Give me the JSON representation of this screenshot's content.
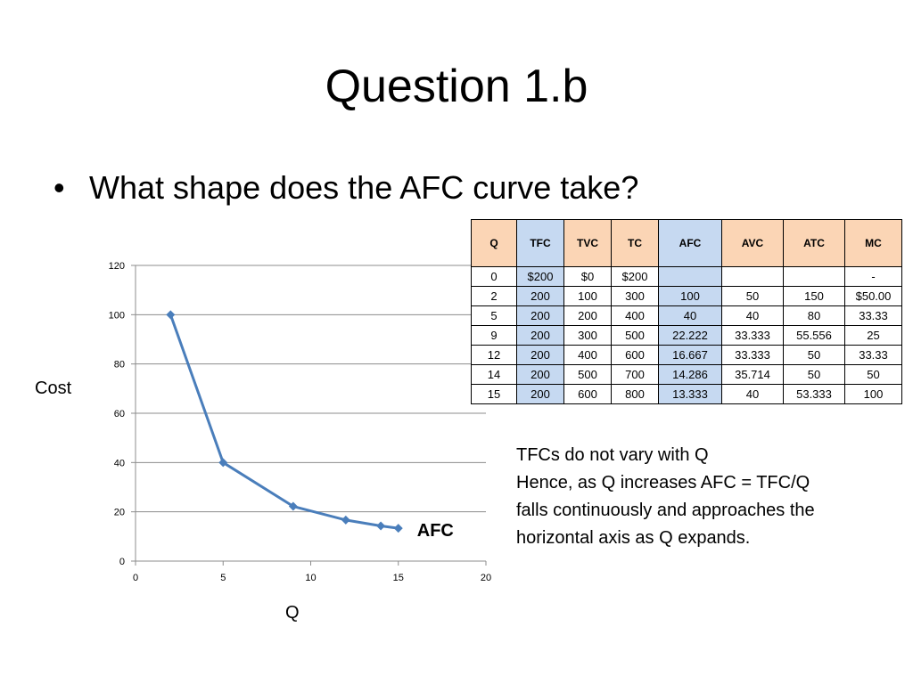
{
  "title": "Question 1.b",
  "bullet": {
    "symbol": "•",
    "text": "What shape does the AFC curve take?"
  },
  "chart_data": {
    "type": "line",
    "title": "",
    "xlabel": "Q",
    "ylabel": "Cost",
    "xlim": [
      0,
      20
    ],
    "ylim": [
      0,
      120
    ],
    "x_ticks": [
      0,
      5,
      10,
      15,
      20
    ],
    "y_ticks": [
      0,
      20,
      40,
      60,
      80,
      100,
      120
    ],
    "grid": "horizontal",
    "series": [
      {
        "name": "AFC",
        "color": "#4a7ebb",
        "marker": "diamond",
        "x": [
          2,
          5,
          9,
          12,
          14,
          15
        ],
        "y": [
          100,
          40,
          22.222,
          16.667,
          14.286,
          13.333
        ]
      }
    ]
  },
  "table": {
    "headers": [
      "Q",
      "TFC",
      "TVC",
      "TC",
      "AFC",
      "AVC",
      "ATC",
      "MC"
    ],
    "highlight_columns": [
      1,
      4
    ],
    "rows": [
      [
        "0",
        "$200",
        "$0",
        "$200",
        "",
        "",
        "",
        "-"
      ],
      [
        "2",
        "200",
        "100",
        "300",
        "100",
        "50",
        "150",
        "$50.00"
      ],
      [
        "5",
        "200",
        "200",
        "400",
        "40",
        "40",
        "80",
        "33.33"
      ],
      [
        "9",
        "200",
        "300",
        "500",
        "22.222",
        "33.333",
        "55.556",
        "25"
      ],
      [
        "12",
        "200",
        "400",
        "600",
        "16.667",
        "33.333",
        "50",
        "33.33"
      ],
      [
        "14",
        "200",
        "500",
        "700",
        "14.286",
        "35.714",
        "50",
        "50"
      ],
      [
        "15",
        "200",
        "600",
        "800",
        "13.333",
        "40",
        "53.333",
        "100"
      ]
    ],
    "colors": {
      "header_orange": "#fbd5b5",
      "highlight_blue": "#c6d9f1"
    }
  },
  "explanation": [
    "TFCs do not vary with Q",
    "Hence, as Q increases AFC = TFC/Q",
    "falls continuously and approaches the",
    "horizontal axis as Q expands."
  ]
}
